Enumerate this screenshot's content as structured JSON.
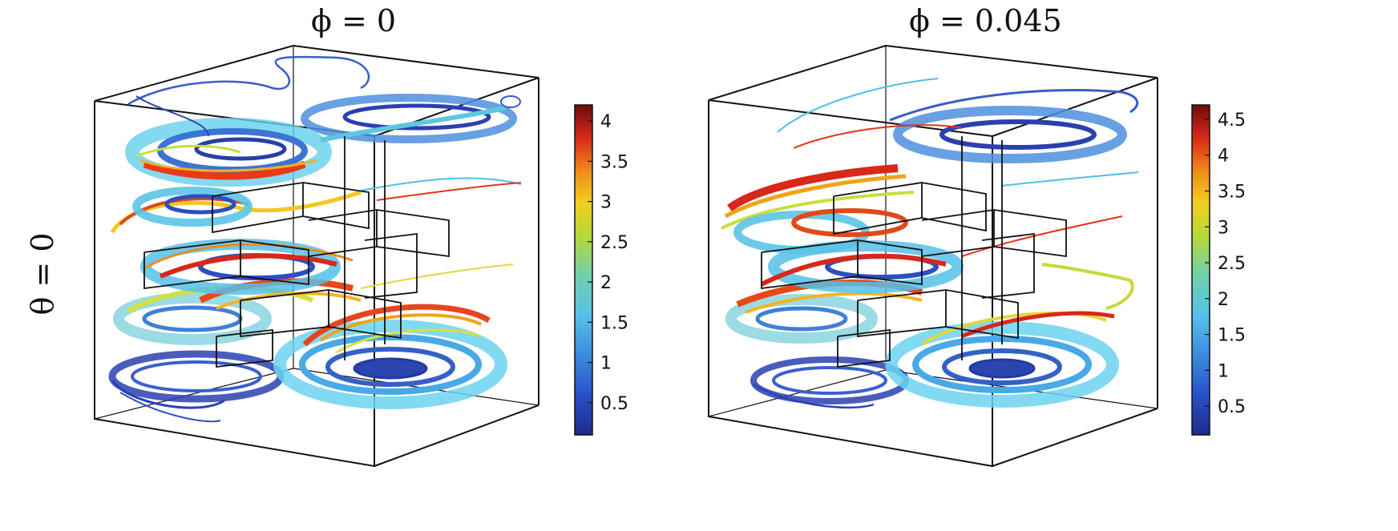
{
  "row_label": "θ = 0",
  "panels": [
    {
      "title": "ϕ = 0",
      "colorbar": {
        "ticks": [
          "4",
          "3.5",
          "3",
          "2.5",
          "2",
          "1.5",
          "1",
          "0.5"
        ],
        "max": 4.2
      }
    },
    {
      "title": "ϕ = 0.045",
      "colorbar": {
        "ticks": [
          "4.5",
          "4",
          "3.5",
          "3",
          "2.5",
          "2",
          "1.5",
          "1",
          "0.5"
        ],
        "max": 4.7
      }
    }
  ],
  "colormap": [
    "#1f2a8a",
    "#2850c8",
    "#3d8fe0",
    "#55c0e8",
    "#6fd0b0",
    "#b4d83a",
    "#f0d020",
    "#f08a1a",
    "#d8281a",
    "#8c1010"
  ]
}
